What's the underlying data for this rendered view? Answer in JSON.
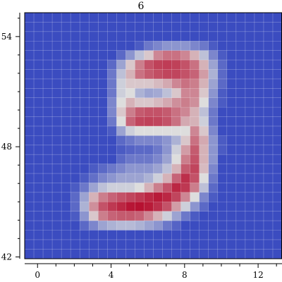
{
  "chart_data": {
    "type": "heatmap",
    "title": "6",
    "xlabel": "",
    "ylabel": "",
    "colormap": "coolwarm",
    "colors": {
      "low": "#3b4cc0",
      "mid": "#dddddd",
      "high": "#b40426"
    },
    "xlim": [
      -0.7,
      13.3
    ],
    "ylim": [
      41.9,
      55.3
    ],
    "xticks": [
      0,
      4,
      8,
      12
    ],
    "xtick_labels": [
      "0",
      "4",
      "8",
      "12"
    ],
    "yticks": [
      42,
      48,
      54
    ],
    "ytick_labels": [
      "42",
      "48",
      "54"
    ],
    "grid": true,
    "image": {
      "columns": 28,
      "rows": 26,
      "x0": -0.7,
      "dx": 0.5,
      "y_top": 55.3,
      "dy": 0.515,
      "description_of_values": "intensity 0-1, row 0 = top",
      "values": [
        [
          0,
          0,
          0,
          0,
          0,
          0,
          0,
          0,
          0,
          0,
          0,
          0,
          0,
          0,
          0,
          0,
          0,
          0,
          0,
          0,
          0,
          0,
          0,
          0,
          0,
          0,
          0,
          0
        ],
        [
          0,
          0,
          0,
          0,
          0,
          0,
          0,
          0,
          0,
          0,
          0,
          0,
          0,
          0,
          0,
          0,
          0,
          0,
          0,
          0,
          0,
          0,
          0,
          0,
          0,
          0,
          0,
          0
        ],
        [
          0,
          0,
          0,
          0,
          0,
          0,
          0,
          0,
          0,
          0,
          0,
          0,
          0,
          0,
          0,
          0,
          0,
          0,
          0,
          0,
          0,
          0,
          0,
          0,
          0,
          0,
          0,
          0
        ],
        [
          0,
          0,
          0,
          0,
          0,
          0,
          0,
          0,
          0,
          0,
          0,
          0,
          0.05,
          0.15,
          0.2,
          0.25,
          0.25,
          0.25,
          0.2,
          0.15,
          0.05,
          0,
          0,
          0,
          0,
          0,
          0,
          0
        ],
        [
          0,
          0,
          0,
          0,
          0,
          0,
          0,
          0,
          0,
          0,
          0.1,
          0.25,
          0.4,
          0.55,
          0.7,
          0.75,
          0.75,
          0.7,
          0.6,
          0.4,
          0.2,
          0.05,
          0,
          0,
          0,
          0,
          0,
          0
        ],
        [
          0,
          0,
          0,
          0,
          0,
          0,
          0,
          0,
          0,
          0.1,
          0.3,
          0.55,
          0.72,
          0.82,
          0.86,
          0.87,
          0.86,
          0.82,
          0.75,
          0.6,
          0.3,
          0.1,
          0,
          0,
          0,
          0,
          0,
          0
        ],
        [
          0,
          0,
          0,
          0,
          0,
          0,
          0,
          0,
          0,
          0.15,
          0.4,
          0.6,
          0.75,
          0.8,
          0.83,
          0.85,
          0.85,
          0.82,
          0.78,
          0.65,
          0.35,
          0.1,
          0,
          0,
          0,
          0,
          0,
          0
        ],
        [
          0,
          0,
          0,
          0,
          0,
          0,
          0,
          0,
          0,
          0.15,
          0.45,
          0.55,
          0.55,
          0.55,
          0.58,
          0.62,
          0.7,
          0.75,
          0.72,
          0.6,
          0.3,
          0.1,
          0,
          0,
          0,
          0,
          0,
          0
        ],
        [
          0,
          0,
          0,
          0,
          0,
          0,
          0,
          0,
          0,
          0.15,
          0.45,
          0.5,
          0.35,
          0.3,
          0.32,
          0.4,
          0.55,
          0.7,
          0.7,
          0.55,
          0.25,
          0.05,
          0,
          0,
          0,
          0,
          0,
          0
        ],
        [
          0,
          0,
          0,
          0,
          0,
          0,
          0,
          0,
          0,
          0.2,
          0.5,
          0.6,
          0.55,
          0.55,
          0.58,
          0.62,
          0.68,
          0.72,
          0.68,
          0.5,
          0.2,
          0.05,
          0,
          0,
          0,
          0,
          0,
          0
        ],
        [
          0,
          0,
          0,
          0,
          0,
          0,
          0,
          0,
          0,
          0.2,
          0.55,
          0.72,
          0.8,
          0.82,
          0.82,
          0.8,
          0.75,
          0.7,
          0.6,
          0.4,
          0.15,
          0,
          0,
          0,
          0,
          0,
          0,
          0
        ],
        [
          0,
          0,
          0,
          0,
          0,
          0,
          0,
          0,
          0,
          0.15,
          0.5,
          0.78,
          0.85,
          0.86,
          0.85,
          0.82,
          0.75,
          0.62,
          0.6,
          0.45,
          0.15,
          0,
          0,
          0,
          0,
          0,
          0,
          0
        ],
        [
          0,
          0,
          0,
          0,
          0,
          0,
          0,
          0,
          0,
          0.05,
          0.3,
          0.45,
          0.5,
          0.5,
          0.5,
          0.5,
          0.5,
          0.5,
          0.7,
          0.55,
          0.2,
          0,
          0,
          0,
          0,
          0,
          0,
          0
        ],
        [
          0,
          0,
          0,
          0,
          0,
          0,
          0,
          0,
          0,
          0,
          0.1,
          0.15,
          0.2,
          0.2,
          0.2,
          0.25,
          0.35,
          0.55,
          0.75,
          0.62,
          0.25,
          0.05,
          0,
          0,
          0,
          0,
          0,
          0
        ],
        [
          0,
          0,
          0,
          0,
          0,
          0,
          0,
          0,
          0,
          0,
          0.05,
          0.08,
          0.1,
          0.1,
          0.15,
          0.25,
          0.45,
          0.65,
          0.8,
          0.6,
          0.25,
          0.05,
          0,
          0,
          0,
          0,
          0,
          0
        ],
        [
          0,
          0,
          0,
          0,
          0,
          0,
          0,
          0,
          0,
          0,
          0.1,
          0.15,
          0.15,
          0.15,
          0.2,
          0.3,
          0.5,
          0.72,
          0.82,
          0.6,
          0.25,
          0,
          0,
          0,
          0,
          0,
          0,
          0
        ],
        [
          0,
          0,
          0,
          0,
          0,
          0,
          0,
          0.05,
          0.1,
          0.15,
          0.2,
          0.25,
          0.25,
          0.25,
          0.3,
          0.4,
          0.6,
          0.8,
          0.85,
          0.58,
          0.2,
          0,
          0,
          0,
          0,
          0,
          0,
          0
        ],
        [
          0,
          0,
          0,
          0,
          0,
          0,
          0.05,
          0.12,
          0.2,
          0.25,
          0.3,
          0.3,
          0.3,
          0.35,
          0.45,
          0.6,
          0.78,
          0.9,
          0.82,
          0.5,
          0.15,
          0,
          0,
          0,
          0,
          0,
          0,
          0
        ],
        [
          0,
          0,
          0,
          0,
          0,
          0.05,
          0.15,
          0.3,
          0.4,
          0.45,
          0.45,
          0.45,
          0.5,
          0.6,
          0.72,
          0.82,
          0.92,
          0.88,
          0.72,
          0.4,
          0.1,
          0,
          0,
          0,
          0,
          0,
          0,
          0
        ],
        [
          0,
          0,
          0,
          0,
          0,
          0.1,
          0.3,
          0.6,
          0.72,
          0.78,
          0.82,
          0.85,
          0.88,
          0.92,
          0.95,
          0.92,
          0.85,
          0.7,
          0.5,
          0.2,
          0.05,
          0,
          0,
          0,
          0,
          0,
          0,
          0
        ],
        [
          0,
          0,
          0,
          0,
          0,
          0.1,
          0.35,
          0.68,
          0.82,
          0.88,
          0.92,
          0.96,
          0.97,
          0.95,
          0.9,
          0.82,
          0.65,
          0.45,
          0.25,
          0.1,
          0,
          0,
          0,
          0,
          0,
          0,
          0,
          0
        ],
        [
          0,
          0,
          0,
          0,
          0,
          0.05,
          0.25,
          0.55,
          0.72,
          0.78,
          0.8,
          0.8,
          0.78,
          0.7,
          0.6,
          0.45,
          0.3,
          0.15,
          0.05,
          0,
          0,
          0,
          0,
          0,
          0,
          0,
          0,
          0
        ],
        [
          0,
          0,
          0,
          0,
          0,
          0,
          0.1,
          0.2,
          0.3,
          0.35,
          0.38,
          0.38,
          0.35,
          0.3,
          0.25,
          0.15,
          0.08,
          0,
          0,
          0,
          0,
          0,
          0,
          0,
          0,
          0,
          0,
          0
        ],
        [
          0,
          0,
          0,
          0,
          0,
          0,
          0,
          0,
          0,
          0,
          0,
          0,
          0,
          0,
          0,
          0,
          0,
          0,
          0,
          0,
          0,
          0,
          0,
          0,
          0,
          0,
          0,
          0
        ],
        [
          0,
          0,
          0,
          0,
          0,
          0,
          0,
          0,
          0,
          0,
          0,
          0,
          0,
          0,
          0,
          0,
          0,
          0,
          0,
          0,
          0,
          0,
          0,
          0,
          0,
          0,
          0,
          0
        ],
        [
          0,
          0,
          0,
          0,
          0,
          0,
          0,
          0,
          0,
          0,
          0,
          0,
          0,
          0,
          0,
          0,
          0,
          0,
          0,
          0,
          0,
          0,
          0,
          0,
          0,
          0,
          0,
          0
        ]
      ]
    }
  }
}
